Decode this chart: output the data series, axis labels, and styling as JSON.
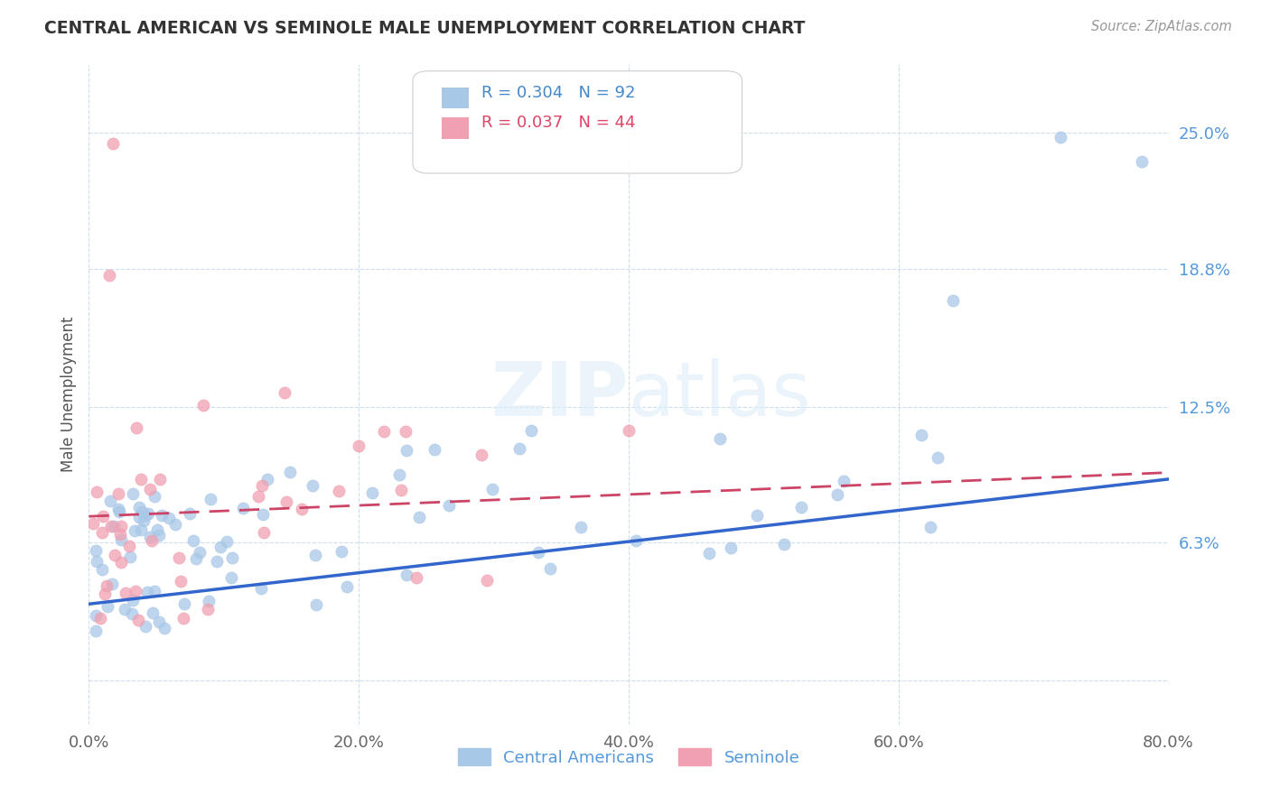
{
  "title": "CENTRAL AMERICAN VS SEMINOLE MALE UNEMPLOYMENT CORRELATION CHART",
  "source": "Source: ZipAtlas.com",
  "ylabel": "Male Unemployment",
  "xmin": 0.0,
  "xmax": 0.8,
  "ymin": -0.02,
  "ymax": 0.2813,
  "ytick_vals": [
    0.0,
    0.063,
    0.125,
    0.188,
    0.25
  ],
  "ytick_labels": [
    "",
    "6.3%",
    "12.5%",
    "18.8%",
    "25.0%"
  ],
  "xtick_labels": [
    "0.0%",
    "20.0%",
    "40.0%",
    "60.0%",
    "80.0%"
  ],
  "xticks": [
    0.0,
    0.2,
    0.4,
    0.6,
    0.8
  ],
  "blue_R": 0.304,
  "blue_N": 92,
  "pink_R": 0.037,
  "pink_N": 44,
  "blue_color": "#a8c8e8",
  "pink_color": "#f0a0b0",
  "blue_line_color": "#3366cc",
  "pink_line_color": "#cc4466",
  "legend_label_blue": "Central Americans",
  "legend_label_pink": "Seminole",
  "watermark": "ZIPatlas",
  "background_color": "#ffffff",
  "grid_color": "#ccddee",
  "blue_trend_x0": 0.0,
  "blue_trend_y0": 0.035,
  "blue_trend_x1": 0.8,
  "blue_trend_y1": 0.092,
  "pink_trend_x0": 0.0,
  "pink_trend_y0": 0.075,
  "pink_trend_x1": 0.8,
  "pink_trend_y1": 0.095
}
